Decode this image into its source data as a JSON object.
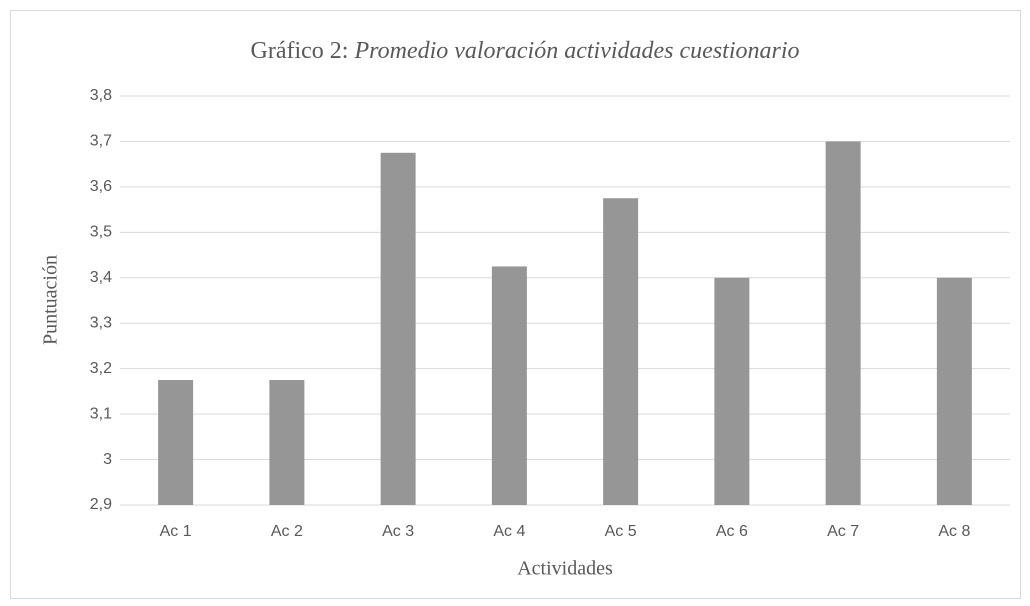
{
  "chart_data": {
    "type": "bar",
    "title": [
      "Gráfico 2:",
      "Promedio valoración actividades cuestionario"
    ],
    "x_label": "Actividades",
    "y_label": "Puntuación",
    "categories": [
      "Ac 1",
      "Ac 2",
      "Ac 3",
      "Ac 4",
      "Ac 5",
      "Ac 6",
      "Ac 7",
      "Ac 8"
    ],
    "values": [
      3.175,
      3.175,
      3.675,
      3.425,
      3.575,
      3.4,
      3.7,
      3.4
    ],
    "color": "#969696",
    "ylim": [
      2.9,
      3.8
    ],
    "yticks": [
      {
        "value": 2.9,
        "label": "2,9"
      },
      3,
      {
        "value": 3.1,
        "label": "3,1"
      },
      {
        "value": 3.2,
        "label": "3,2"
      },
      {
        "value": 3.3,
        "label": "3,3"
      },
      {
        "value": 3.4,
        "label": "3,4"
      },
      {
        "value": 3.5,
        "label": "3,5"
      },
      {
        "value": 3.6,
        "label": "3,6"
      },
      {
        "value": 3.7,
        "label": "3,7"
      },
      {
        "value": 3.8,
        "label": "3,8"
      }
    ],
    "grid": true
  }
}
